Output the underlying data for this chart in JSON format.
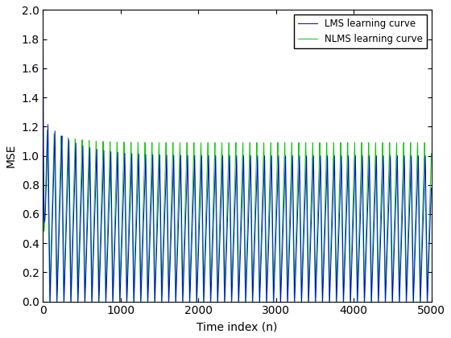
{
  "title": "",
  "xlabel": "Time index (n)",
  "ylabel": "MSE",
  "xlim": [
    0,
    5000
  ],
  "ylim": [
    0,
    2
  ],
  "yticks": [
    0,
    0.2,
    0.4,
    0.6,
    0.8,
    1.0,
    1.2,
    1.4,
    1.6,
    1.8,
    2.0
  ],
  "xticks": [
    0,
    1000,
    2000,
    3000,
    4000,
    5000
  ],
  "lms_color": "#0000ee",
  "nlms_color": "#00cc00",
  "lms_label": "LMS learning curve",
  "nlms_label": "NLMS learning curve",
  "linewidth": 0.7,
  "n_samples": 5000,
  "period": 90,
  "figsize": [
    5.6,
    4.2
  ],
  "dpi": 100
}
